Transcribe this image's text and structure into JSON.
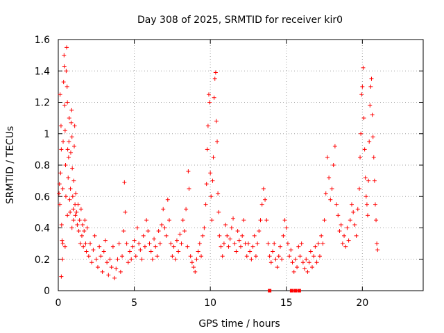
{
  "chart_data": {
    "type": "scatter",
    "title": "Day 308 of 2025, SRMTID for receiver kir0",
    "xlabel": "GPS time / hours",
    "ylabel": "SRMTID / TECUs",
    "xlim": [
      0,
      24
    ],
    "ylim": [
      0,
      1.6
    ],
    "xticks": [
      0,
      5,
      10,
      15,
      20
    ],
    "xtick_labels": [
      "0",
      "5",
      "10",
      "15",
      "20"
    ],
    "yticks": [
      0,
      0.2,
      0.4,
      0.6,
      0.8,
      1.0,
      1.2,
      1.4,
      1.6
    ],
    "ytick_labels": [
      "0",
      "0.2",
      "0.4",
      "0.6",
      "0.8",
      "1",
      "1.2",
      "1.4",
      "1.6"
    ],
    "grid": true,
    "marker": "plus",
    "color": "#ff0000",
    "series": [
      {
        "name": "SRMTID",
        "points": [
          [
            0.05,
            0.62
          ],
          [
            0.08,
            0.68
          ],
          [
            0.1,
            0.55
          ],
          [
            0.12,
            1.25
          ],
          [
            0.15,
            0.75
          ],
          [
            0.18,
            1.05
          ],
          [
            0.2,
            0.9
          ],
          [
            0.22,
            0.42
          ],
          [
            0.25,
            0.32
          ],
          [
            0.28,
            0.2
          ],
          [
            0.3,
            0.65
          ],
          [
            0.32,
            0.95
          ],
          [
            0.35,
            1.33
          ],
          [
            0.38,
            1.5
          ],
          [
            0.4,
            1.43
          ],
          [
            0.42,
            1.18
          ],
          [
            0.45,
            1.02
          ],
          [
            0.48,
            0.8
          ],
          [
            0.5,
            0.6
          ],
          [
            0.52,
            1.4
          ],
          [
            0.55,
            1.55
          ],
          [
            0.58,
            1.3
          ],
          [
            0.6,
            1.2
          ],
          [
            0.62,
            0.9
          ],
          [
            0.65,
            0.72
          ],
          [
            0.68,
            0.85
          ],
          [
            0.7,
            0.95
          ],
          [
            0.72,
            1.1
          ],
          [
            0.75,
            0.58
          ],
          [
            0.78,
            0.5
          ],
          [
            0.8,
            0.65
          ],
          [
            0.82,
            0.88
          ],
          [
            0.85,
            1.07
          ],
          [
            0.88,
            1.15
          ],
          [
            0.9,
            0.98
          ],
          [
            0.92,
            0.78
          ],
          [
            0.95,
            0.6
          ],
          [
            0.98,
            0.52
          ],
          [
            1.0,
            0.45
          ],
          [
            1.02,
            0.7
          ],
          [
            1.05,
            0.92
          ],
          [
            1.08,
            1.05
          ],
          [
            1.1,
            0.55
          ],
          [
            1.12,
            0.48
          ],
          [
            1.15,
            0.62
          ],
          [
            1.2,
            0.5
          ],
          [
            1.25,
            0.42
          ],
          [
            1.3,
            0.55
          ],
          [
            1.35,
            0.38
          ],
          [
            1.4,
            0.45
          ],
          [
            1.45,
            0.3
          ],
          [
            1.5,
            0.52
          ],
          [
            1.55,
            0.35
          ],
          [
            1.6,
            0.42
          ],
          [
            1.65,
            0.28
          ],
          [
            1.7,
            0.38
          ],
          [
            1.75,
            0.45
          ],
          [
            1.8,
            0.3
          ],
          [
            1.85,
            0.25
          ],
          [
            1.9,
            0.4
          ],
          [
            0.2,
            0.09
          ],
          [
            0.3,
            0.3
          ],
          [
            0.45,
            0.28
          ],
          [
            0.6,
            0.48
          ],
          [
            0.9,
            0.4
          ],
          [
            2.0,
            0.22
          ],
          [
            2.1,
            0.3
          ],
          [
            2.2,
            0.18
          ],
          [
            2.3,
            0.26
          ],
          [
            2.4,
            0.35
          ],
          [
            2.5,
            0.2
          ],
          [
            2.6,
            0.15
          ],
          [
            2.7,
            0.28
          ],
          [
            2.8,
            0.22
          ],
          [
            2.9,
            0.12
          ],
          [
            3.0,
            0.25
          ],
          [
            3.1,
            0.32
          ],
          [
            3.2,
            0.18
          ],
          [
            3.3,
            0.1
          ],
          [
            3.4,
            0.2
          ],
          [
            3.5,
            0.15
          ],
          [
            3.6,
            0.28
          ],
          [
            3.7,
            0.08
          ],
          [
            3.8,
            0.14
          ],
          [
            3.9,
            0.2
          ],
          [
            4.0,
            0.3
          ],
          [
            4.1,
            0.12
          ],
          [
            4.2,
            0.22
          ],
          [
            4.3,
            0.38
          ],
          [
            4.35,
            0.69
          ],
          [
            4.4,
            0.5
          ],
          [
            4.5,
            0.3
          ],
          [
            4.6,
            0.18
          ],
          [
            4.7,
            0.25
          ],
          [
            4.8,
            0.2
          ],
          [
            4.9,
            0.28
          ],
          [
            5.0,
            0.32
          ],
          [
            5.1,
            0.22
          ],
          [
            5.2,
            0.4
          ],
          [
            5.3,
            0.3
          ],
          [
            5.4,
            0.26
          ],
          [
            5.5,
            0.2
          ],
          [
            5.6,
            0.35
          ],
          [
            5.7,
            0.28
          ],
          [
            5.8,
            0.45
          ],
          [
            5.9,
            0.38
          ],
          [
            6.0,
            0.3
          ],
          [
            6.1,
            0.25
          ],
          [
            6.2,
            0.2
          ],
          [
            6.3,
            0.33
          ],
          [
            6.4,
            0.28
          ],
          [
            6.5,
            0.22
          ],
          [
            6.6,
            0.38
          ],
          [
            6.7,
            0.3
          ],
          [
            6.8,
            0.42
          ],
          [
            6.9,
            0.52
          ],
          [
            7.0,
            0.4
          ],
          [
            7.1,
            0.35
          ],
          [
            7.2,
            0.58
          ],
          [
            7.3,
            0.45
          ],
          [
            7.4,
            0.3
          ],
          [
            7.5,
            0.22
          ],
          [
            7.6,
            0.28
          ],
          [
            7.7,
            0.2
          ],
          [
            7.8,
            0.32
          ],
          [
            7.9,
            0.25
          ],
          [
            8.0,
            0.36
          ],
          [
            8.1,
            0.3
          ],
          [
            8.2,
            0.45
          ],
          [
            8.3,
            0.38
          ],
          [
            8.4,
            0.52
          ],
          [
            8.5,
            0.28
          ],
          [
            8.55,
            0.76
          ],
          [
            8.6,
            0.65
          ],
          [
            8.7,
            0.22
          ],
          [
            8.8,
            0.18
          ],
          [
            8.9,
            0.15
          ],
          [
            9.0,
            0.12
          ],
          [
            9.1,
            0.2
          ],
          [
            9.2,
            0.25
          ],
          [
            9.3,
            0.3
          ],
          [
            9.4,
            0.22
          ],
          [
            9.5,
            0.35
          ],
          [
            9.6,
            0.4
          ],
          [
            9.7,
            0.55
          ],
          [
            9.75,
            0.68
          ],
          [
            9.8,
            0.9
          ],
          [
            9.85,
            1.05
          ],
          [
            9.9,
            1.25
          ],
          [
            9.95,
            1.2
          ],
          [
            10.0,
            0.75
          ],
          [
            10.05,
            0.6
          ],
          [
            10.1,
            0.45
          ],
          [
            10.15,
            0.7
          ],
          [
            10.2,
            0.85
          ],
          [
            10.25,
            1.23
          ],
          [
            10.3,
            1.35
          ],
          [
            10.35,
            1.39
          ],
          [
            10.4,
            1.08
          ],
          [
            10.45,
            0.95
          ],
          [
            10.5,
            0.62
          ],
          [
            10.55,
            0.5
          ],
          [
            10.6,
            0.35
          ],
          [
            10.7,
            0.28
          ],
          [
            10.8,
            0.22
          ],
          [
            10.9,
            0.3
          ],
          [
            11.0,
            0.42
          ],
          [
            11.1,
            0.35
          ],
          [
            11.2,
            0.28
          ],
          [
            11.3,
            0.33
          ],
          [
            11.4,
            0.4
          ],
          [
            11.5,
            0.46
          ],
          [
            11.6,
            0.3
          ],
          [
            11.7,
            0.25
          ],
          [
            11.8,
            0.38
          ],
          [
            11.9,
            0.32
          ],
          [
            12.0,
            0.28
          ],
          [
            12.1,
            0.35
          ],
          [
            12.2,
            0.45
          ],
          [
            12.3,
            0.3
          ],
          [
            12.4,
            0.22
          ],
          [
            12.5,
            0.3
          ],
          [
            12.6,
            0.25
          ],
          [
            12.7,
            0.2
          ],
          [
            12.8,
            0.28
          ],
          [
            12.9,
            0.35
          ],
          [
            13.0,
            0.22
          ],
          [
            13.1,
            0.3
          ],
          [
            13.2,
            0.38
          ],
          [
            13.3,
            0.45
          ],
          [
            13.4,
            0.55
          ],
          [
            13.5,
            0.65
          ],
          [
            13.6,
            0.58
          ],
          [
            13.7,
            0.45
          ],
          [
            13.8,
            0.3
          ],
          [
            13.9,
            0.22
          ],
          [
            14.0,
            0.18
          ],
          [
            14.1,
            0.25
          ],
          [
            14.2,
            0.3
          ],
          [
            14.3,
            0.2
          ],
          [
            14.4,
            0.15
          ],
          [
            14.5,
            0.22
          ],
          [
            14.6,
            0.28
          ],
          [
            14.7,
            0.2
          ],
          [
            14.8,
            0.35
          ],
          [
            14.9,
            0.45
          ],
          [
            15.0,
            0.4
          ],
          [
            15.1,
            0.3
          ],
          [
            15.2,
            0.22
          ],
          [
            15.3,
            0.26
          ],
          [
            15.4,
            0.18
          ],
          [
            15.5,
            0.12
          ],
          [
            15.6,
            0.2
          ],
          [
            15.7,
            0.15
          ],
          [
            15.8,
            0.28
          ],
          [
            15.9,
            0.22
          ],
          [
            16.0,
            0.3
          ],
          [
            16.1,
            0.18
          ],
          [
            16.2,
            0.14
          ],
          [
            16.3,
            0.2
          ],
          [
            16.4,
            0.12
          ],
          [
            16.5,
            0.18
          ],
          [
            16.6,
            0.25
          ],
          [
            16.7,
            0.15
          ],
          [
            16.8,
            0.22
          ],
          [
            16.9,
            0.28
          ],
          [
            17.0,
            0.18
          ],
          [
            17.1,
            0.3
          ],
          [
            17.2,
            0.22
          ],
          [
            17.3,
            0.35
          ],
          [
            17.4,
            0.3
          ],
          [
            17.5,
            0.45
          ],
          [
            17.6,
            0.62
          ],
          [
            17.7,
            0.85
          ],
          [
            17.8,
            0.72
          ],
          [
            17.9,
            0.58
          ],
          [
            18.0,
            0.65
          ],
          [
            18.1,
            0.8
          ],
          [
            18.2,
            0.92
          ],
          [
            18.3,
            0.55
          ],
          [
            18.4,
            0.48
          ],
          [
            18.5,
            0.38
          ],
          [
            18.6,
            0.42
          ],
          [
            18.7,
            0.3
          ],
          [
            18.8,
            0.35
          ],
          [
            18.9,
            0.28
          ],
          [
            19.0,
            0.4
          ],
          [
            19.1,
            0.32
          ],
          [
            19.2,
            0.45
          ],
          [
            19.3,
            0.55
          ],
          [
            19.4,
            0.5
          ],
          [
            19.5,
            0.42
          ],
          [
            19.6,
            0.35
          ],
          [
            19.7,
            0.52
          ],
          [
            19.8,
            0.65
          ],
          [
            19.85,
            0.85
          ],
          [
            19.9,
            1.0
          ],
          [
            19.95,
            1.25
          ],
          [
            20.0,
            1.3
          ],
          [
            20.05,
            1.42
          ],
          [
            20.1,
            1.1
          ],
          [
            20.15,
            0.9
          ],
          [
            20.2,
            0.72
          ],
          [
            20.25,
            0.6
          ],
          [
            20.3,
            0.55
          ],
          [
            20.35,
            0.48
          ],
          [
            20.4,
            0.7
          ],
          [
            20.45,
            0.95
          ],
          [
            20.5,
            1.18
          ],
          [
            20.55,
            1.3
          ],
          [
            20.6,
            1.35
          ],
          [
            20.65,
            1.12
          ],
          [
            20.7,
            0.98
          ],
          [
            20.75,
            0.85
          ],
          [
            20.8,
            0.7
          ],
          [
            20.85,
            0.55
          ],
          [
            20.9,
            0.45
          ],
          [
            20.95,
            0.3
          ],
          [
            21.0,
            0.26
          ]
        ]
      }
    ],
    "zero_points": [
      13.9,
      15.35,
      15.6,
      15.85
    ]
  }
}
